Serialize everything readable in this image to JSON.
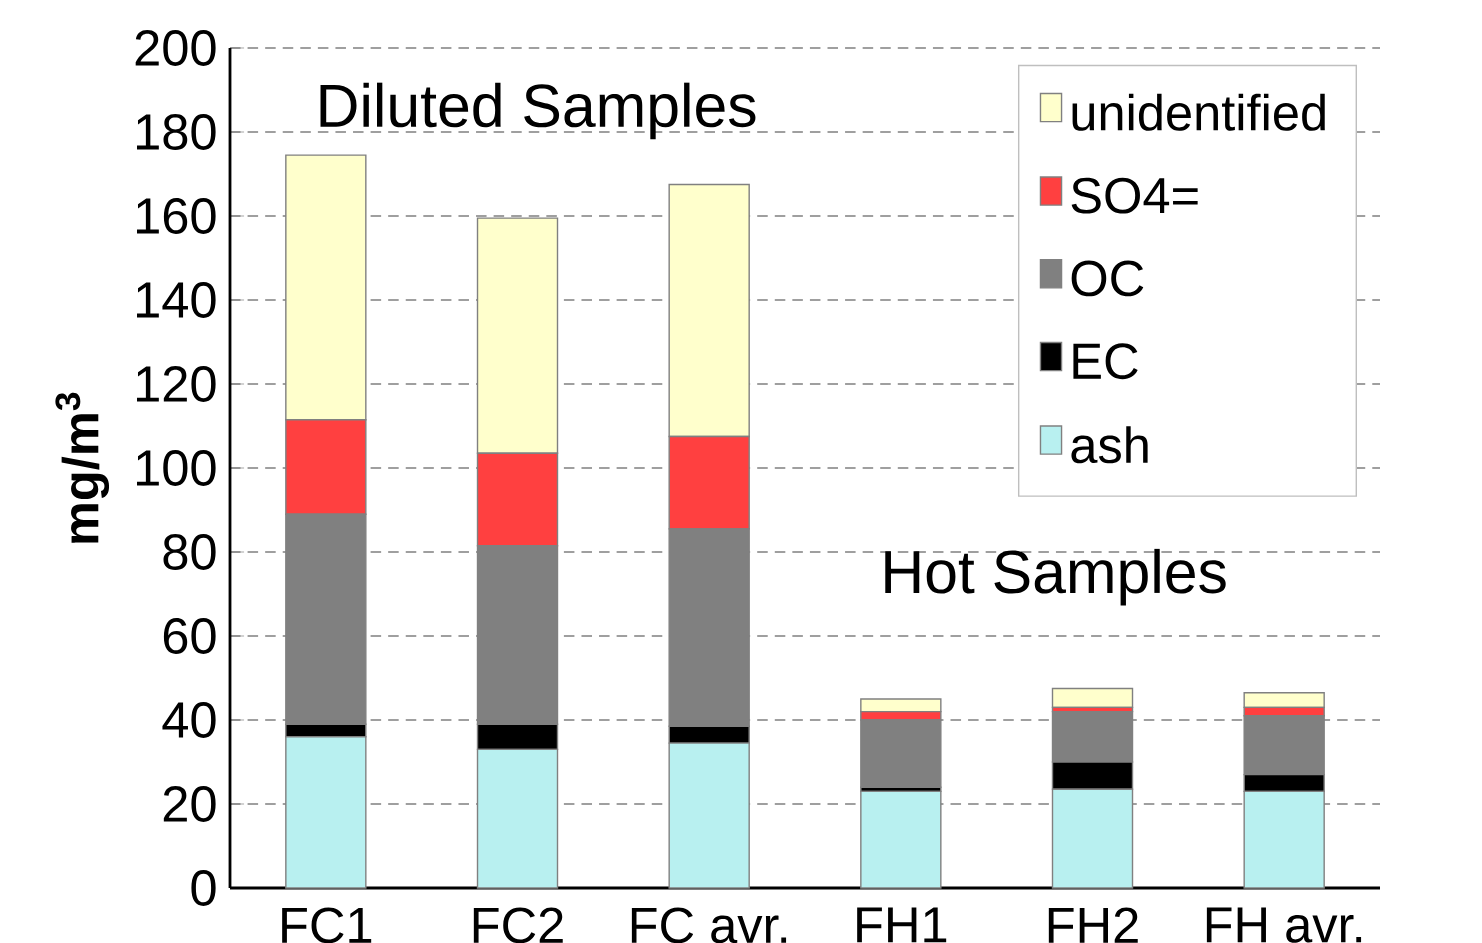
{
  "chart_data": {
    "type": "bar",
    "stacked": true,
    "ylabel": "mg/m$^{3}$",
    "categories": [
      "FC1",
      "FC2",
      "FC avr.",
      "FH1",
      "FH2",
      "FH avr."
    ],
    "series": [
      {
        "name": "ash",
        "color": "#b8f0f0",
        "values": [
          36,
          33,
          34.5,
          23,
          23.5,
          23
        ]
      },
      {
        "name": "EC",
        "color": "#000000",
        "values": [
          3,
          6,
          4,
          1,
          6.5,
          4
        ]
      },
      {
        "name": "OC",
        "color": "#808080",
        "values": [
          50,
          42.5,
          47,
          16,
          12,
          14
        ]
      },
      {
        "name": "SO4=",
        "color": "#ff4040",
        "values": [
          22.5,
          22,
          22,
          2,
          1,
          2
        ]
      },
      {
        "name": "unidentified",
        "color": "#ffffcc",
        "values": [
          63,
          56,
          60,
          3,
          4.5,
          3.5
        ]
      }
    ],
    "ylim": [
      0,
      200
    ],
    "yticks": [
      0,
      20,
      40,
      60,
      80,
      100,
      120,
      140,
      160,
      180,
      200
    ],
    "grid": "y",
    "legend": "top right",
    "annotations": [
      "Diluted Samples",
      "Hot Samples"
    ]
  }
}
